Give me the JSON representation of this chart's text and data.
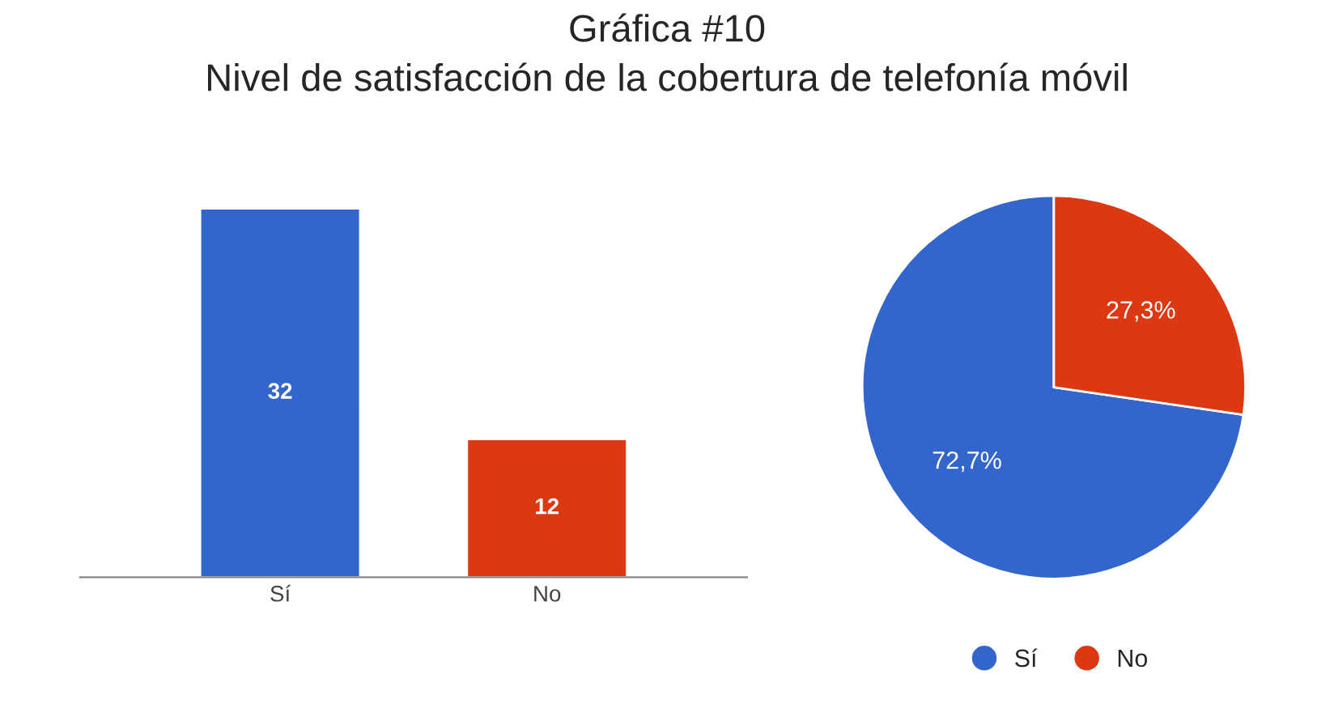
{
  "chart_data": [
    {
      "type": "bar",
      "title": "Gráfica #10",
      "subtitle": "Nivel de satisfacción de la cobertura de telefonía móvil",
      "categories": [
        "Sí",
        "No"
      ],
      "values": [
        32,
        12
      ],
      "colors": [
        "#3366cc",
        "#dc3912"
      ],
      "data_labels": true,
      "grid": false
    },
    {
      "type": "pie",
      "categories": [
        "Sí",
        "No"
      ],
      "values": [
        72.7,
        27.3
      ],
      "colors": [
        "#3366cc",
        "#dc3912"
      ],
      "value_labels": [
        "72,7%",
        "27,3%"
      ],
      "legend": "bottom"
    }
  ]
}
